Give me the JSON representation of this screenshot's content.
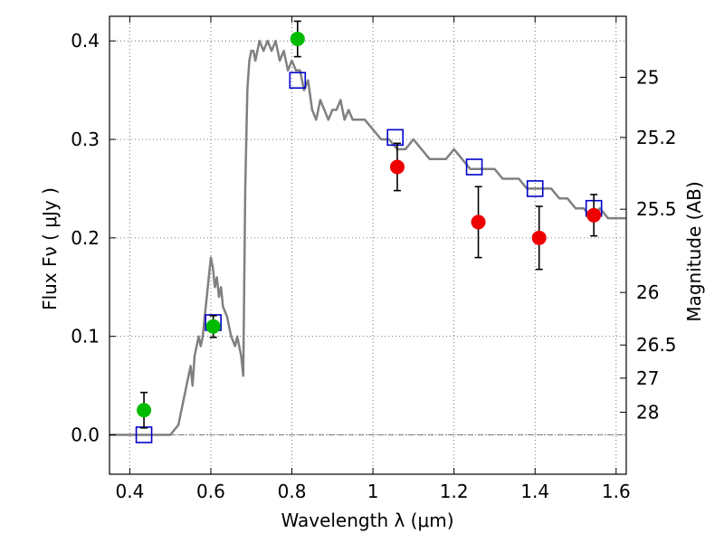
{
  "chart_data": {
    "type": "scatter",
    "xlabel": "Wavelength  λ (μm)",
    "ylabel": "Flux  Fν ( μJy )",
    "y2label": "Magnitude (AB)",
    "xlim": [
      0.35,
      1.625
    ],
    "ylim": [
      -0.04,
      0.425
    ],
    "grid": true,
    "xticks": [
      {
        "value": 0.4,
        "label": "0.4"
      },
      {
        "value": 0.6,
        "label": "0.6"
      },
      {
        "value": 0.8,
        "label": "0.8"
      },
      {
        "value": 1.0,
        "label": "1"
      },
      {
        "value": 1.2,
        "label": "1.2"
      },
      {
        "value": 1.4,
        "label": "1.4"
      },
      {
        "value": 1.6,
        "label": "1.6"
      }
    ],
    "yticks": [
      {
        "value": 0.0,
        "label": "0.0"
      },
      {
        "value": 0.1,
        "label": "0.1"
      },
      {
        "value": 0.2,
        "label": "0.2"
      },
      {
        "value": 0.3,
        "label": "0.3"
      },
      {
        "value": 0.4,
        "label": "0.4"
      }
    ],
    "magnitude_ticks": [
      {
        "value": 25,
        "label": "25"
      },
      {
        "value": 25.2,
        "label": "25.2"
      },
      {
        "value": 25.5,
        "label": "25.5"
      },
      {
        "value": 26,
        "label": "26"
      },
      {
        "value": 26.5,
        "label": "26.5"
      },
      {
        "value": 27,
        "label": "27"
      },
      {
        "value": 28,
        "label": "28"
      }
    ],
    "colors": {
      "template": "#808080",
      "optical_points": "#00bb00",
      "nir_points": "#ee0000",
      "model_squares": "#0000cc",
      "zero_line": "#555555",
      "grid": "#555555"
    },
    "series": [
      {
        "name": "template_spectrum",
        "kind": "line",
        "x": [
          0.35,
          0.5,
          0.52,
          0.53,
          0.54,
          0.55,
          0.555,
          0.56,
          0.565,
          0.57,
          0.575,
          0.58,
          0.585,
          0.59,
          0.595,
          0.6,
          0.605,
          0.61,
          0.615,
          0.62,
          0.625,
          0.63,
          0.64,
          0.65,
          0.66,
          0.665,
          0.67,
          0.675,
          0.68,
          0.685,
          0.69,
          0.695,
          0.7,
          0.705,
          0.71,
          0.72,
          0.73,
          0.74,
          0.75,
          0.76,
          0.77,
          0.78,
          0.79,
          0.8,
          0.81,
          0.82,
          0.83,
          0.84,
          0.85,
          0.86,
          0.87,
          0.88,
          0.89,
          0.9,
          0.91,
          0.92,
          0.93,
          0.94,
          0.95,
          0.96,
          0.98,
          1.0,
          1.02,
          1.04,
          1.06,
          1.08,
          1.1,
          1.12,
          1.14,
          1.16,
          1.18,
          1.2,
          1.22,
          1.24,
          1.26,
          1.28,
          1.3,
          1.32,
          1.34,
          1.36,
          1.38,
          1.4,
          1.42,
          1.44,
          1.46,
          1.48,
          1.5,
          1.52,
          1.54,
          1.56,
          1.58,
          1.6,
          1.625
        ],
        "y": [
          0.0,
          0.0,
          0.01,
          0.03,
          0.05,
          0.07,
          0.05,
          0.08,
          0.09,
          0.1,
          0.09,
          0.1,
          0.12,
          0.14,
          0.16,
          0.18,
          0.17,
          0.15,
          0.16,
          0.14,
          0.15,
          0.13,
          0.12,
          0.1,
          0.09,
          0.1,
          0.09,
          0.08,
          0.06,
          0.25,
          0.35,
          0.38,
          0.39,
          0.39,
          0.38,
          0.4,
          0.39,
          0.4,
          0.39,
          0.4,
          0.38,
          0.39,
          0.37,
          0.38,
          0.37,
          0.37,
          0.35,
          0.36,
          0.33,
          0.32,
          0.34,
          0.33,
          0.32,
          0.33,
          0.33,
          0.34,
          0.32,
          0.33,
          0.32,
          0.32,
          0.32,
          0.31,
          0.3,
          0.3,
          0.29,
          0.29,
          0.3,
          0.29,
          0.28,
          0.28,
          0.28,
          0.29,
          0.28,
          0.27,
          0.27,
          0.27,
          0.27,
          0.26,
          0.26,
          0.26,
          0.25,
          0.25,
          0.25,
          0.25,
          0.24,
          0.24,
          0.23,
          0.23,
          0.22,
          0.23,
          0.22,
          0.22,
          0.22
        ]
      },
      {
        "name": "model_photometry",
        "kind": "open-square",
        "x": [
          0.435,
          0.606,
          0.814,
          1.055,
          1.25,
          1.4,
          1.545
        ],
        "y": [
          0.0,
          0.114,
          0.36,
          0.302,
          0.272,
          0.25,
          0.23
        ]
      },
      {
        "name": "optical_photometry",
        "kind": "filled-circle",
        "x": [
          0.435,
          0.606,
          0.814
        ],
        "y": [
          0.025,
          0.11,
          0.402
        ],
        "yerr": [
          0.018,
          0.011,
          0.018
        ]
      },
      {
        "name": "nir_photometry",
        "kind": "filled-circle",
        "x": [
          1.06,
          1.26,
          1.41,
          1.545
        ],
        "y": [
          0.272,
          0.216,
          0.2,
          0.223
        ],
        "yerr": [
          0.024,
          0.036,
          0.032,
          0.021
        ]
      }
    ]
  }
}
